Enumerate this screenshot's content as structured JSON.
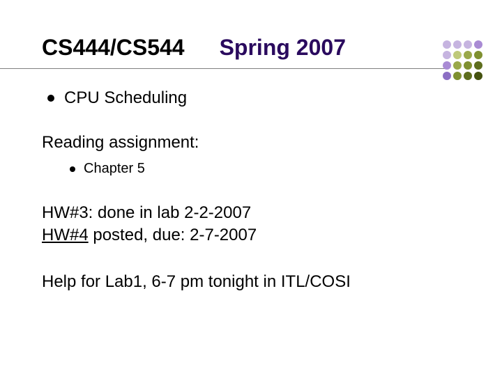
{
  "title": {
    "left": "CS444/CS544",
    "right": "Spring 2007",
    "left_color": "#000000",
    "right_color": "#2a0a5e",
    "fontsize": 32
  },
  "decoration": {
    "dot_colors": [
      "#c6b4e0",
      "#c6b4e0",
      "#c6b4e0",
      "#a98bd4",
      "#c6b4e0",
      "#bfc97a",
      "#9aa84a",
      "#7f9030",
      "#a98bd4",
      "#9aa84a",
      "#7f9030",
      "#5e6e1e",
      "#8c6fc4",
      "#7f9030",
      "#5e6e1e",
      "#45520f"
    ],
    "dot_size": 12
  },
  "bullet1": {
    "text": "CPU Scheduling",
    "fontsize": 24
  },
  "section": {
    "heading": "Reading assignment:",
    "sub_bullet": "Chapter 5",
    "heading_fontsize": 24,
    "sub_fontsize": 20
  },
  "hw3": {
    "text": "HW#3: done in lab 2-2-2007"
  },
  "hw4": {
    "underlined": "HW#4",
    "rest": " posted, due: 2-7-2007"
  },
  "help": {
    "text": "Help for Lab1, 6-7 pm tonight in ITL/COSI"
  },
  "colors": {
    "background": "#ffffff",
    "text": "#000000",
    "rule": "#808080"
  }
}
